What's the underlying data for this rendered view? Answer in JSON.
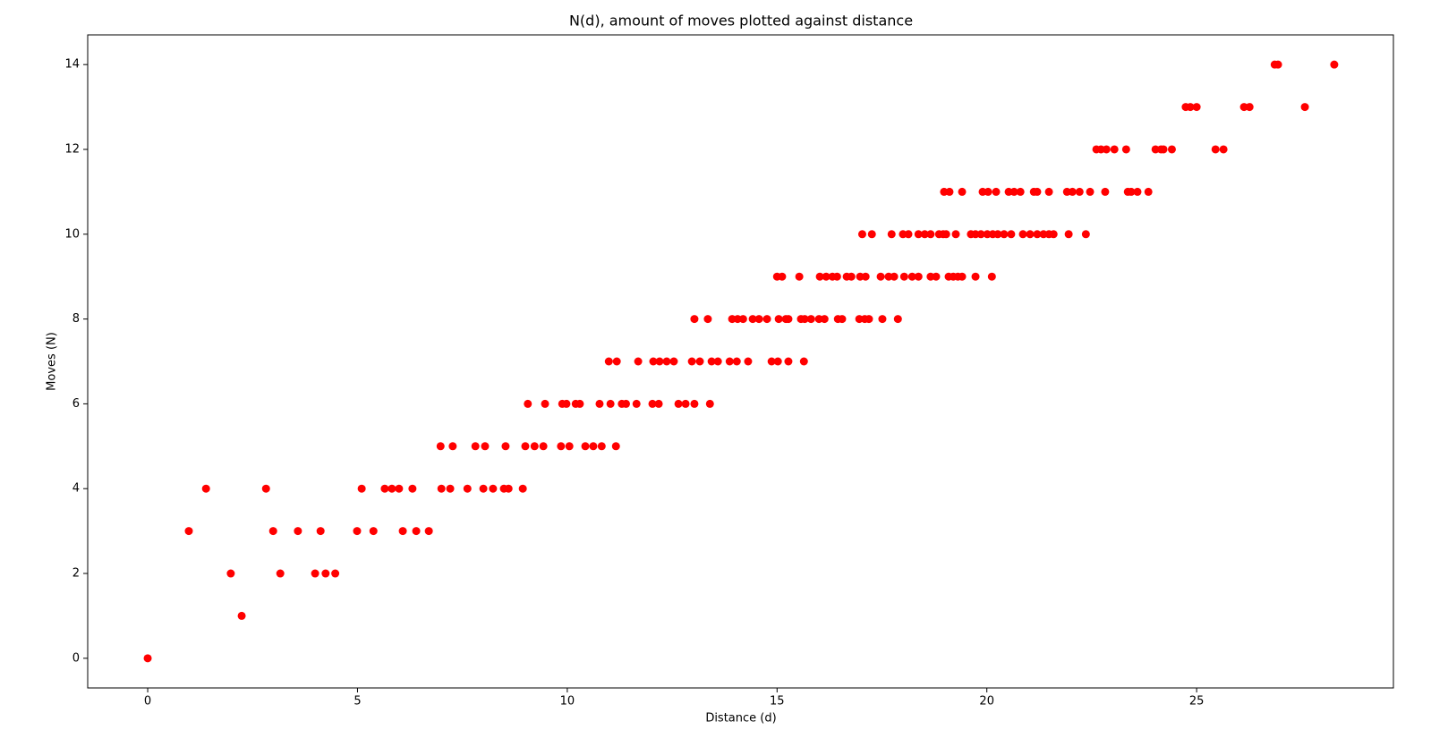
{
  "chart_data": {
    "type": "scatter",
    "title": "N(d), amount of moves plotted against distance",
    "x_label": "Distance (d)",
    "y_label": "Moves (N)",
    "xlim": [
      -1.43,
      29.69
    ],
    "ylim": [
      -0.7,
      14.7
    ],
    "xticks": [
      0,
      5,
      10,
      15,
      20,
      25
    ],
    "yticks": [
      0,
      2,
      4,
      6,
      8,
      10,
      12,
      14
    ],
    "color": "#ff0000",
    "x": [
      0,
      2.24,
      1.98,
      3.16,
      3.99,
      4.24,
      4.47,
      0.98,
      2.99,
      3.58,
      4.12,
      4.99,
      5.38,
      6.08,
      6.4,
      6.7,
      1.39,
      2.82,
      5.1,
      5.65,
      5.82,
      5.99,
      6.31,
      7.0,
      7.21,
      7.62,
      8.0,
      8.23,
      8.49,
      8.6,
      8.94,
      6.98,
      7.27,
      7.81,
      8.04,
      8.53,
      9.0,
      9.22,
      9.43,
      9.85,
      10.05,
      10.43,
      10.62,
      10.82,
      11.16,
      9.06,
      9.47,
      9.88,
      9.98,
      10.2,
      10.3,
      10.77,
      11.03,
      11.3,
      11.4,
      11.65,
      12.03,
      12.18,
      12.65,
      12.82,
      13.03,
      13.4,
      10.99,
      11.18,
      11.69,
      12.05,
      12.2,
      12.37,
      12.54,
      12.97,
      13.16,
      13.44,
      13.59,
      13.87,
      14.04,
      14.31,
      14.87,
      15.02,
      15.27,
      15.64,
      13.03,
      13.35,
      13.93,
      14.06,
      14.19,
      14.42,
      14.57,
      14.76,
      15.04,
      15.21,
      15.27,
      15.57,
      15.66,
      15.81,
      16.0,
      16.13,
      16.45,
      16.55,
      16.96,
      17.09,
      17.19,
      17.51,
      17.88,
      15.0,
      15.12,
      15.53,
      16.02,
      16.17,
      16.32,
      16.43,
      16.66,
      16.77,
      16.98,
      17.11,
      17.47,
      17.66,
      17.79,
      18.03,
      18.22,
      18.37,
      18.66,
      18.79,
      19.09,
      19.2,
      19.31,
      19.41,
      19.73,
      20.12,
      17.03,
      17.26,
      17.73,
      18.0,
      18.13,
      18.37,
      18.52,
      18.66,
      18.86,
      18.96,
      19.03,
      19.26,
      19.62,
      19.73,
      19.86,
      20.01,
      20.14,
      20.26,
      20.41,
      20.58,
      20.86,
      21.03,
      21.2,
      21.35,
      21.48,
      21.59,
      21.95,
      22.36,
      18.98,
      19.11,
      19.41,
      19.9,
      20.03,
      20.22,
      20.52,
      20.65,
      20.8,
      21.12,
      21.2,
      21.48,
      21.91,
      22.04,
      22.21,
      22.46,
      22.82,
      23.36,
      23.44,
      23.59,
      23.85,
      22.61,
      22.72,
      22.85,
      23.04,
      23.32,
      24.02,
      24.15,
      24.21,
      24.41,
      25.45,
      25.64,
      24.74,
      24.85,
      25.0,
      26.13,
      26.26,
      27.58,
      26.86,
      26.94,
      28.28
    ],
    "values": [
      0,
      1,
      2,
      2,
      2,
      2,
      2,
      3,
      3,
      3,
      3,
      3,
      3,
      3,
      3,
      3,
      4,
      4,
      4,
      4,
      4,
      4,
      4,
      4,
      4,
      4,
      4,
      4,
      4,
      4,
      4,
      5,
      5,
      5,
      5,
      5,
      5,
      5,
      5,
      5,
      5,
      5,
      5,
      5,
      5,
      6,
      6,
      6,
      6,
      6,
      6,
      6,
      6,
      6,
      6,
      6,
      6,
      6,
      6,
      6,
      6,
      6,
      7,
      7,
      7,
      7,
      7,
      7,
      7,
      7,
      7,
      7,
      7,
      7,
      7,
      7,
      7,
      7,
      7,
      7,
      8,
      8,
      8,
      8,
      8,
      8,
      8,
      8,
      8,
      8,
      8,
      8,
      8,
      8,
      8,
      8,
      8,
      8,
      8,
      8,
      8,
      8,
      8,
      9,
      9,
      9,
      9,
      9,
      9,
      9,
      9,
      9,
      9,
      9,
      9,
      9,
      9,
      9,
      9,
      9,
      9,
      9,
      9,
      9,
      9,
      9,
      9,
      9,
      10,
      10,
      10,
      10,
      10,
      10,
      10,
      10,
      10,
      10,
      10,
      10,
      10,
      10,
      10,
      10,
      10,
      10,
      10,
      10,
      10,
      10,
      10,
      10,
      10,
      10,
      10,
      10,
      11,
      11,
      11,
      11,
      11,
      11,
      11,
      11,
      11,
      11,
      11,
      11,
      11,
      11,
      11,
      11,
      11,
      11,
      11,
      11,
      11,
      12,
      12,
      12,
      12,
      12,
      12,
      12,
      12,
      12,
      12,
      12,
      13,
      13,
      13,
      13,
      13,
      13,
      14,
      14,
      14
    ]
  }
}
